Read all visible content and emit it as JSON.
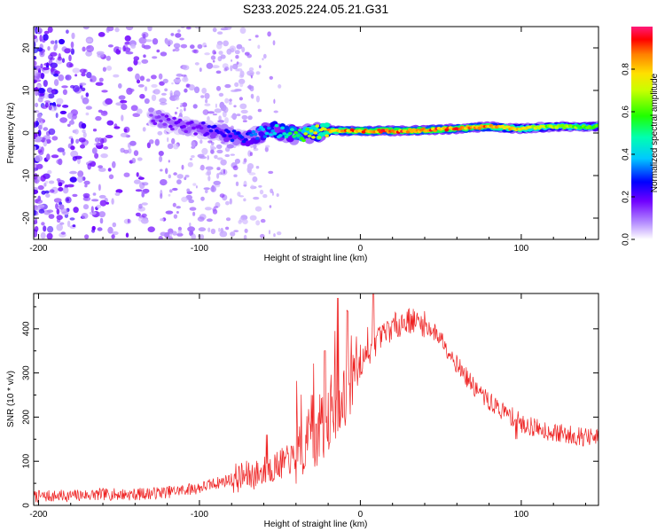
{
  "title": "S233.2025.224.05.21.G31",
  "colors": {
    "snr_line": "#ee2222",
    "frame": "#000000",
    "spectrogram_bg": "#ffffff"
  },
  "chart_data": [
    {
      "type": "heatmap",
      "title": "S233.2025.224.05.21.G31",
      "xlabel": "Height of straight line (km)",
      "ylabel": "Frequency (Hz)",
      "xlim": [
        -203,
        148
      ],
      "ylim": [
        -25,
        25
      ],
      "x_ticks": [
        -200,
        -100,
        0,
        100
      ],
      "y_ticks": [
        -20,
        -10,
        0,
        10,
        20
      ],
      "colorbar": {
        "label": "Normalized spectral amplitude",
        "range": [
          0,
          1
        ],
        "ticks": [
          "0.0",
          "0.2",
          "0.4",
          "0.6",
          "0.8"
        ],
        "tick_values": [
          0,
          0.2,
          0.4,
          0.6,
          0.8
        ]
      },
      "ridge": [
        {
          "x": -130,
          "f": 4.0
        },
        {
          "x": -110,
          "f": 1.5
        },
        {
          "x": -90,
          "f": 0.5
        },
        {
          "x": -70,
          "f": -1.5
        },
        {
          "x": -55,
          "f": 1.0
        },
        {
          "x": -40,
          "f": -0.5
        },
        {
          "x": -20,
          "f": 0.5
        },
        {
          "x": 0,
          "f": 0.5
        },
        {
          "x": 30,
          "f": 0.5
        },
        {
          "x": 60,
          "f": 1.0
        },
        {
          "x": 80,
          "f": 1.5
        },
        {
          "x": 100,
          "f": 1.0
        },
        {
          "x": 120,
          "f": 1.5
        },
        {
          "x": 148,
          "f": 1.5
        }
      ],
      "ridge_amplitude": [
        {
          "x": -130,
          "a": 0.15
        },
        {
          "x": -100,
          "a": 0.2
        },
        {
          "x": -70,
          "a": 0.3
        },
        {
          "x": -50,
          "a": 0.45
        },
        {
          "x": -20,
          "a": 0.8
        },
        {
          "x": 0,
          "a": 0.9
        },
        {
          "x": 40,
          "a": 0.9
        },
        {
          "x": 80,
          "a": 0.85
        },
        {
          "x": 110,
          "a": 0.7
        },
        {
          "x": 148,
          "a": 0.6
        }
      ]
    },
    {
      "type": "line",
      "xlabel": "Height of straight line (km)",
      "ylabel": "SNR (10 * v/v)",
      "xlim": [
        -203,
        148
      ],
      "ylim": [
        0,
        480
      ],
      "x_ticks": [
        -200,
        -100,
        0,
        100
      ],
      "y_ticks": [
        0,
        100,
        200,
        300,
        400
      ],
      "series": [
        {
          "name": "SNR",
          "x": [
            -203,
            -180,
            -160,
            -140,
            -120,
            -100,
            -80,
            -65,
            -55,
            -40,
            -30,
            -20,
            -10,
            -5,
            0,
            10,
            20,
            30,
            40,
            50,
            60,
            70,
            80,
            90,
            97,
            100,
            110,
            120,
            130,
            140,
            148
          ],
          "y": [
            20,
            22,
            25,
            25,
            30,
            40,
            60,
            70,
            85,
            110,
            150,
            200,
            250,
            290,
            320,
            370,
            405,
            420,
            410,
            380,
            320,
            270,
            235,
            210,
            195,
            185,
            175,
            165,
            160,
            155,
            150
          ]
        }
      ],
      "spikes": [
        {
          "x": -58,
          "y": 160
        },
        {
          "x": -30,
          "y": 250
        },
        {
          "x": -22,
          "y": 350
        },
        {
          "x": -14,
          "y": 470
        },
        {
          "x": -8,
          "y": 440
        },
        {
          "x": 8,
          "y": 480
        },
        {
          "x": 97,
          "y": 150
        }
      ]
    }
  ]
}
